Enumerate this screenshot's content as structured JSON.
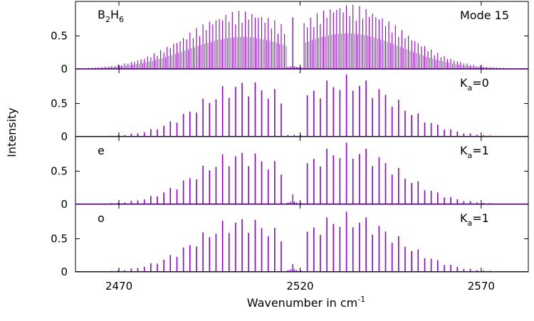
{
  "figure": {
    "ylabel": "Intensity",
    "xlabel_main": "Wavenumber in cm",
    "xlabel_sup": "-1",
    "line_color": "#8a00d4"
  },
  "chart_data": [
    {
      "type": "line",
      "panel": "Mode 15",
      "label_left": {
        "base1": "B",
        "sub1": "2",
        "base2": "H",
        "sub2": "6"
      },
      "label_right": "Mode 15",
      "xlim": [
        2458,
        2583
      ],
      "ylim": [
        0,
        1.0
      ],
      "yticks": [
        0,
        0.5
      ],
      "xticks": [
        2470,
        2520,
        2570
      ],
      "envelope": {
        "bands": [
          {
            "center": 2504,
            "peak": 0.88,
            "width": 15
          },
          {
            "center": 2533,
            "peak": 0.98,
            "width": 15
          }
        ],
        "line_spacing": 0.9,
        "dense": true,
        "q_branch": {
          "x": 2518,
          "height": 0.78
        }
      }
    },
    {
      "type": "line",
      "panel": "Ka=0",
      "label_left": "",
      "label_right": {
        "base": "K",
        "sub": "a",
        "rest": "=0"
      },
      "xlim": [
        2458,
        2583
      ],
      "ylim": [
        0,
        1.0
      ],
      "yticks": [
        0,
        0.5
      ],
      "envelope": {
        "bands": [
          {
            "center": 2505,
            "peak": 0.87,
            "width": 13
          },
          {
            "center": 2533,
            "peak": 0.94,
            "width": 14
          }
        ],
        "line_spacing": 1.8,
        "dense": false
      }
    },
    {
      "type": "line",
      "panel": "Ka=1 e",
      "label_left": "e",
      "label_right": {
        "base": "K",
        "sub": "a",
        "rest": "=1"
      },
      "xlim": [
        2458,
        2583
      ],
      "ylim": [
        0,
        1.0
      ],
      "yticks": [
        0,
        0.5
      ],
      "envelope": {
        "bands": [
          {
            "center": 2504,
            "peak": 0.83,
            "width": 13
          },
          {
            "center": 2533,
            "peak": 0.93,
            "width": 14
          }
        ],
        "line_spacing": 1.8,
        "dense": false,
        "q_branch": {
          "x": 2518,
          "height": 0.15
        }
      }
    },
    {
      "type": "line",
      "panel": "Ka=1 o",
      "label_left": "o",
      "label_right": {
        "base": "K",
        "sub": "a",
        "rest": "=1"
      },
      "xlim": [
        2458,
        2583
      ],
      "ylim": [
        0,
        1.0
      ],
      "yticks": [
        0,
        0.5
      ],
      "xticks": [
        2470,
        2520,
        2570
      ],
      "envelope": {
        "bands": [
          {
            "center": 2504,
            "peak": 0.85,
            "width": 13
          },
          {
            "center": 2533,
            "peak": 0.91,
            "width": 14
          }
        ],
        "line_spacing": 1.8,
        "dense": false,
        "q_branch": {
          "x": 2518,
          "height": 0.12
        }
      }
    }
  ]
}
